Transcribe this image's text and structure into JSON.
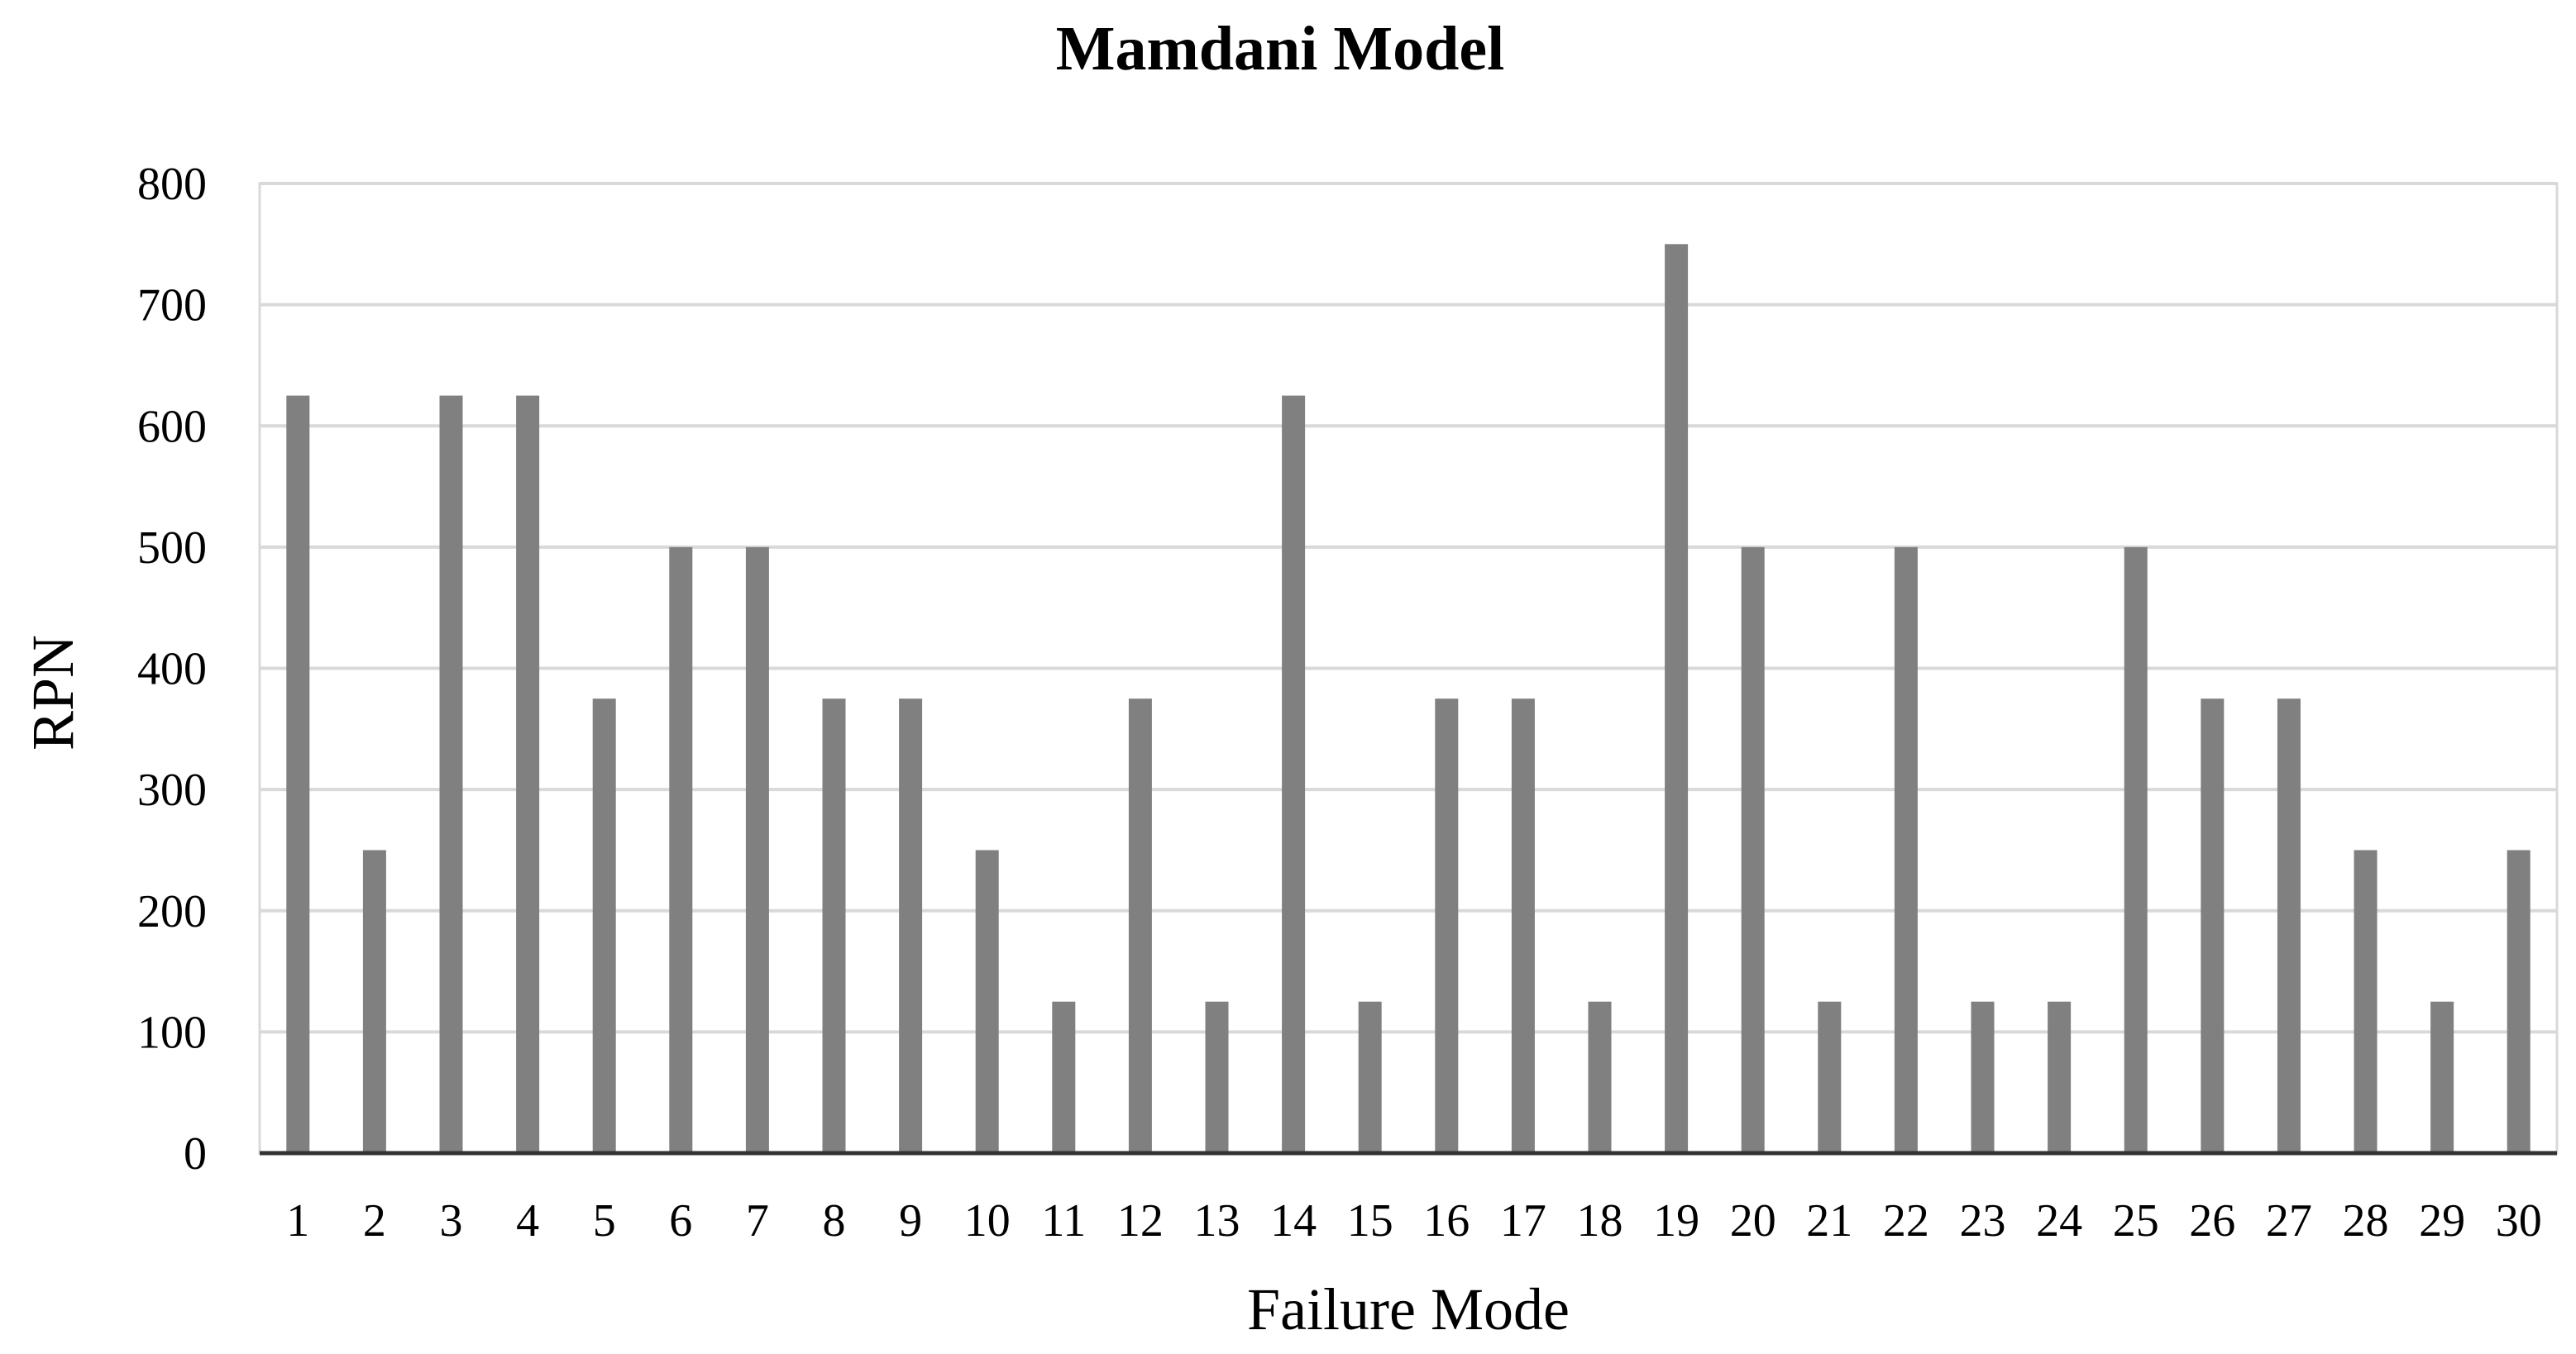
{
  "chart_data": {
    "type": "bar",
    "title": "Mamdani Model",
    "xlabel": "Failure Mode",
    "ylabel": "RPN",
    "ylim": [
      0,
      800
    ],
    "yticks": [
      0,
      100,
      200,
      300,
      400,
      500,
      600,
      700,
      800
    ],
    "grid": true,
    "bar_color": "#808080",
    "categories": [
      "1",
      "2",
      "3",
      "4",
      "5",
      "6",
      "7",
      "8",
      "9",
      "10",
      "11",
      "12",
      "13",
      "14",
      "15",
      "16",
      "17",
      "18",
      "19",
      "20",
      "21",
      "22",
      "23",
      "24",
      "25",
      "26",
      "27",
      "28",
      "29",
      "30"
    ],
    "values": [
      625,
      250,
      625,
      625,
      375,
      500,
      500,
      375,
      375,
      250,
      125,
      375,
      125,
      625,
      125,
      375,
      375,
      125,
      750,
      500,
      125,
      500,
      125,
      125,
      500,
      375,
      375,
      250,
      125,
      250
    ]
  }
}
